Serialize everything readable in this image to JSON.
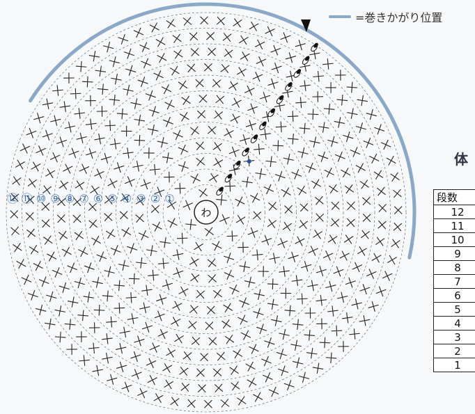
{
  "legend": {
    "line_color": "#8aa8c8",
    "text": "=巻きかがり位置"
  },
  "diagram": {
    "center_label": "わ",
    "round_count": 12,
    "round_labels": [
      "⑫",
      "⑪",
      "⑩",
      "⑨",
      "⑧",
      "⑦",
      "⑥",
      "⑤",
      "④",
      "③",
      "②",
      "①"
    ],
    "stitch_color": "#222222",
    "marker_color": "#2a4fa0",
    "arrow_color": "#111111"
  },
  "section_title": "体",
  "table": {
    "header": "段数",
    "rows": [
      "12",
      "11",
      "10",
      "9",
      "8",
      "7",
      "6",
      "5",
      "4",
      "3",
      "2",
      "1"
    ]
  }
}
